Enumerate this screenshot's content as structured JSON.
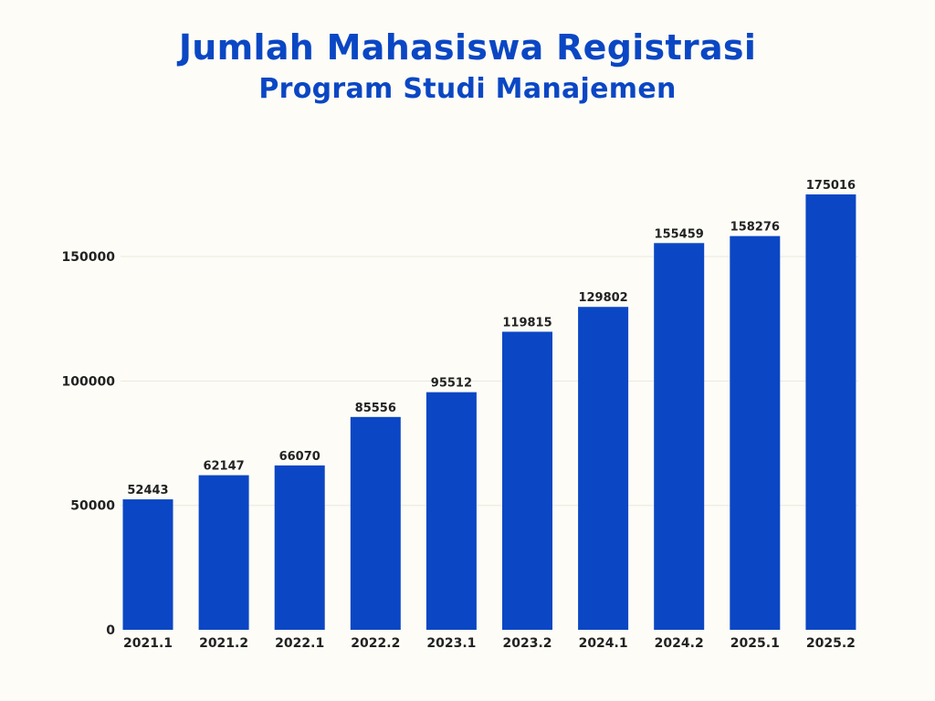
{
  "title_line1": "Jumlah Mahasiswa Registrasi",
  "title_line2": "Program Studi Manajemen",
  "colors": {
    "bar": "#0b47c4",
    "title": "#0b47c4",
    "background": "#fdfcf7",
    "text": "#222222"
  },
  "chart_data": {
    "type": "bar",
    "title": "Jumlah Mahasiswa Registrasi Program Studi Manajemen",
    "xlabel": "",
    "ylabel": "",
    "categories": [
      "2021.1",
      "2021.2",
      "2022.1",
      "2022.2",
      "2023.1",
      "2023.2",
      "2024.1",
      "2024.2",
      "2025.1",
      "2025.2"
    ],
    "values": [
      52443,
      62147,
      66070,
      85556,
      95512,
      119815,
      129802,
      155459,
      158276,
      175016
    ],
    "y_ticks": [
      0,
      50000,
      100000,
      150000
    ],
    "ylim": [
      0,
      175016
    ],
    "grid": true,
    "data_labels": true
  }
}
